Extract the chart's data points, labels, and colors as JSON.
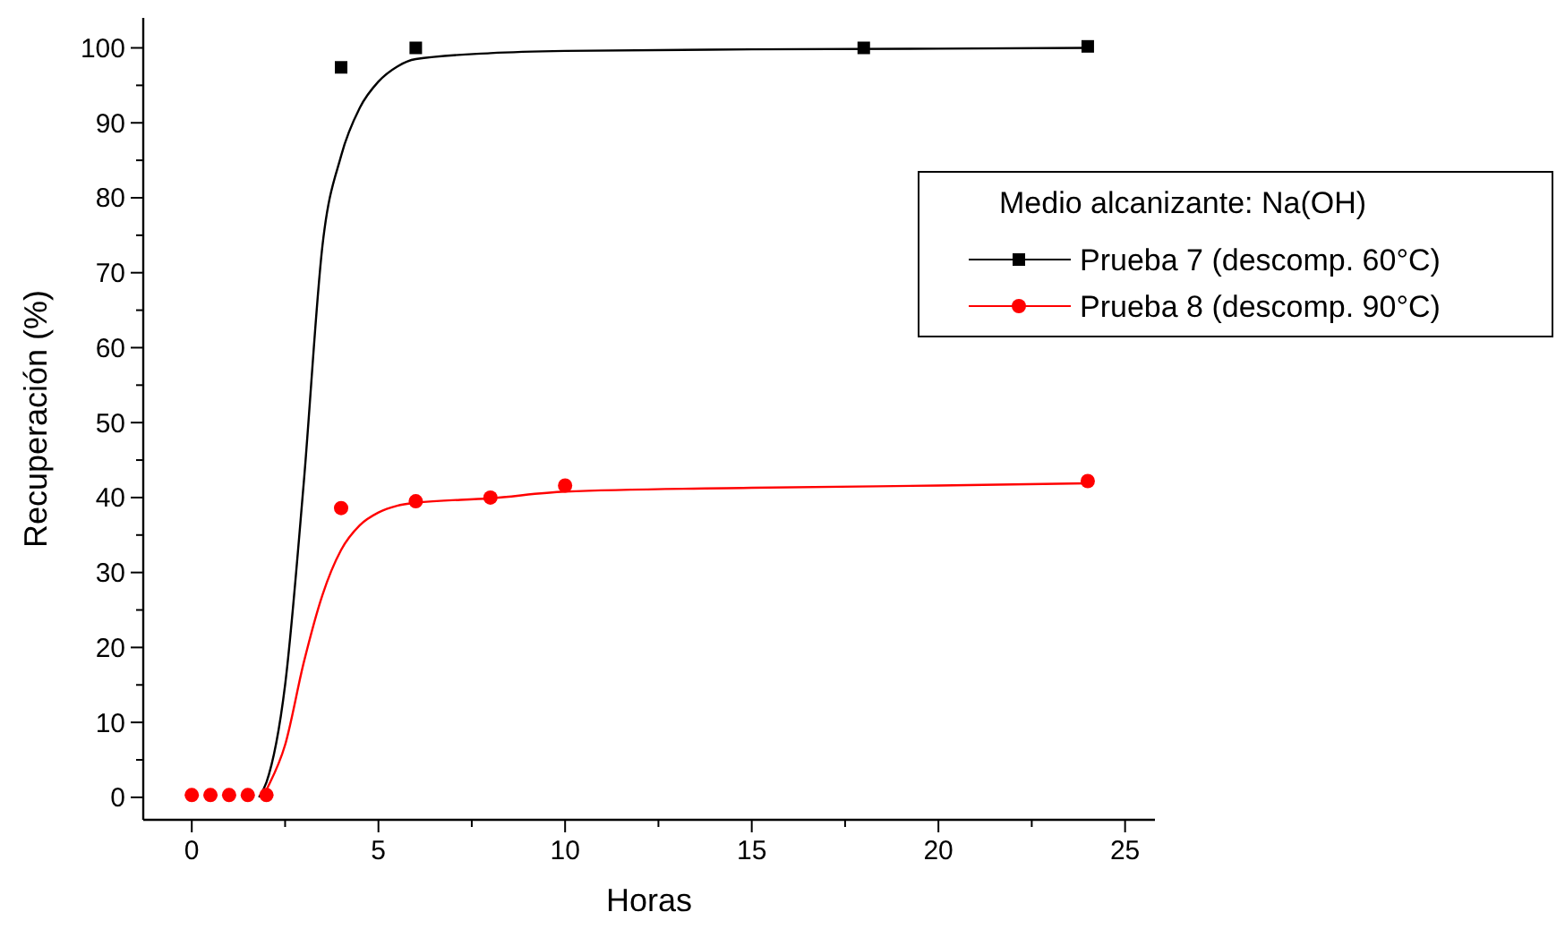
{
  "chart_data": {
    "type": "scatter",
    "xlabel": "Horas",
    "ylabel": "Recuperación (%)",
    "legend_title": "Medio alcanizante: Na(OH)",
    "legend": "top right",
    "grid": false,
    "xlim": [
      -1.3,
      25.8
    ],
    "ylim": [
      -3,
      104
    ],
    "xticks": [
      0,
      {
        "value": 2.5,
        "label": null
      },
      5,
      {
        "value": 7.5,
        "label": null
      },
      10,
      {
        "value": 12.5,
        "label": null
      },
      15,
      {
        "value": 17.5,
        "label": null
      },
      20,
      {
        "value": 22.5,
        "label": null
      },
      25
    ],
    "yticks": [
      0,
      {
        "value": 5,
        "label": null
      },
      10,
      {
        "value": 15,
        "label": null
      },
      20,
      {
        "value": 25,
        "label": null
      },
      30,
      {
        "value": 35,
        "label": null
      },
      40,
      {
        "value": 45,
        "label": null
      },
      50,
      {
        "value": 55,
        "label": null
      },
      60,
      {
        "value": 65,
        "label": null
      },
      70,
      {
        "value": 75,
        "label": null
      },
      80,
      {
        "value": 85,
        "label": null
      },
      90,
      {
        "value": 95,
        "label": null
      },
      100
    ],
    "series": [
      {
        "type": "line",
        "color": "#000000",
        "marker": "none",
        "x": [
          1.8,
          2,
          2.5,
          3,
          3.5,
          4,
          4.5,
          5,
          5.5,
          6,
          8,
          10,
          15,
          20,
          24
        ],
        "values": [
          0,
          2,
          15,
          42,
          73.6,
          85.6,
          92,
          95.5,
          97.5,
          98.5,
          99.3,
          99.6,
          99.8,
          99.9,
          100
        ]
      },
      {
        "type": "line",
        "color": "#ff0000",
        "marker": "none",
        "x": [
          1.9,
          2,
          2.5,
          3,
          3.5,
          4,
          4.5,
          5,
          5.5,
          6,
          8,
          10,
          15,
          20,
          24
        ],
        "values": [
          0,
          1,
          7,
          18,
          27,
          33,
          36.3,
          38,
          38.9,
          39.3,
          39.9,
          40.8,
          41.3,
          41.6,
          41.9
        ]
      },
      {
        "name": "Prueba 7 (descomp. 60°C)",
        "color": "#000000",
        "marker": "square",
        "x": [
          4,
          6,
          18,
          24
        ],
        "values": [
          97.4,
          100,
          100,
          100.2
        ]
      },
      {
        "name": "Prueba 8 (descomp. 90°C)",
        "color": "#ff0000",
        "marker": "circle",
        "x": [
          0,
          0.5,
          1,
          1.5,
          2,
          4,
          6,
          8,
          10,
          24
        ],
        "values": [
          0.3,
          0.3,
          0.3,
          0.3,
          0.3,
          38.6,
          39.5,
          40,
          41.6,
          42.2
        ]
      }
    ]
  }
}
